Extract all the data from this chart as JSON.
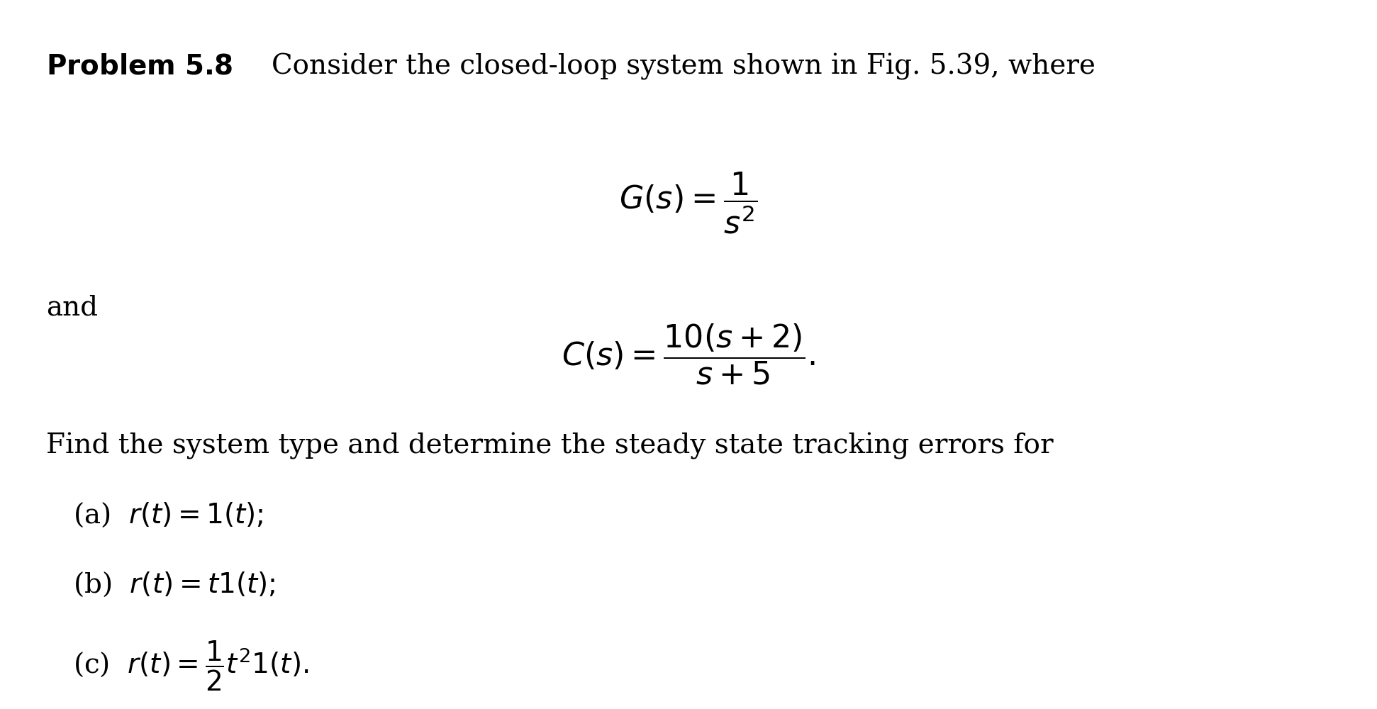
{
  "background_color": "#ffffff",
  "figsize": [
    19.42,
    10.0
  ],
  "dpi": 100,
  "title_bold": "Problem 5.8",
  "title_normal": " Consider the closed-loop system shown in Fig. 5.39, where",
  "G_eq": "$G(s) = \\dfrac{1}{s^2}$",
  "and_text": "and",
  "C_eq": "$C(s) = \\dfrac{10(s+2)}{s+5}.$",
  "find_text": "Find the system type and determine the steady state tracking errors for",
  "part_a": "(a)  $r(t) = 1(t);$",
  "part_b": "(b)  $r(t) = t1(t);$",
  "part_c": "(c)  $r(t) = \\dfrac{1}{2}t^2 1(t).$",
  "font_size_main": 28,
  "font_size_eq": 32,
  "font_size_parts": 28,
  "text_color": "#000000"
}
